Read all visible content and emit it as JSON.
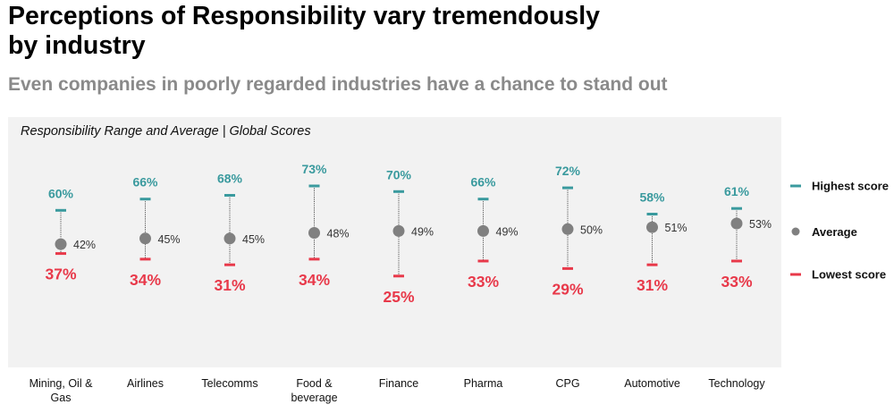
{
  "title": "Perceptions of Responsibility vary tremendously by industry",
  "subtitle": "Even companies in poorly regarded industries have a chance to stand out",
  "chart_data": {
    "type": "range",
    "title": "Responsibility Range and Average | Global Scores",
    "categories": [
      [
        "Mining, Oil &",
        "Gas"
      ],
      [
        "Airlines"
      ],
      [
        "Telecomms"
      ],
      [
        "Food &",
        "beverage"
      ],
      [
        "Finance"
      ],
      [
        "Pharma"
      ],
      [
        "CPG"
      ],
      [
        "Automotive"
      ],
      [
        "Technology"
      ]
    ],
    "series": [
      {
        "name": "Highest score",
        "values": [
          60,
          66,
          68,
          73,
          70,
          66,
          72,
          58,
          61
        ]
      },
      {
        "name": "Average",
        "values": [
          42,
          45,
          45,
          48,
          49,
          49,
          50,
          51,
          53
        ]
      },
      {
        "name": "Lowest score",
        "values": [
          37,
          34,
          31,
          34,
          25,
          33,
          29,
          31,
          33
        ]
      }
    ],
    "value_suffix": "%",
    "legend": [
      "Highest score",
      "Average",
      "Lowest score"
    ],
    "legend_position": "right",
    "colors": {
      "high": "#3a9a9e",
      "low": "#e8394a",
      "avg": "#808080",
      "panel": "#f2f2f2"
    }
  }
}
